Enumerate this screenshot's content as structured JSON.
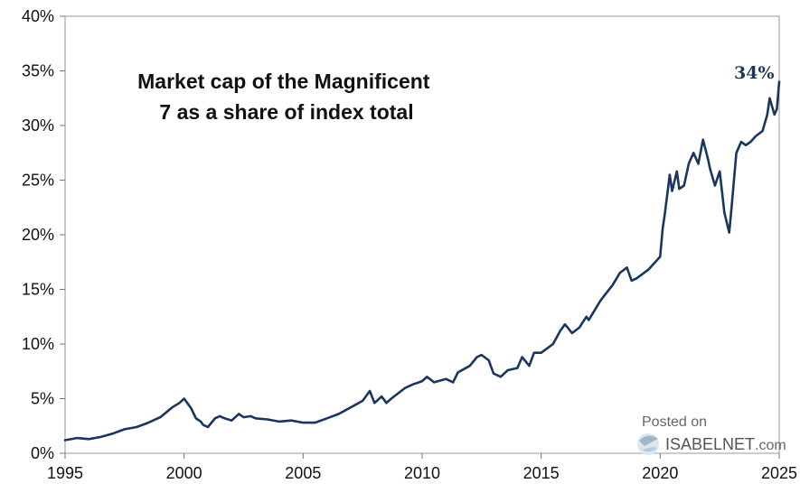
{
  "chart_data": {
    "type": "line",
    "title_lines": [
      "Market cap of the Magnificent",
      "7 as a share of index total"
    ],
    "xlabel": "",
    "ylabel": "",
    "xlim": [
      1995,
      2025
    ],
    "ylim": [
      0,
      40
    ],
    "x_ticks": [
      "1995",
      "2000",
      "2005",
      "2010",
      "2015",
      "2020",
      "2025"
    ],
    "y_ticks": [
      "0%",
      "5%",
      "10%",
      "15%",
      "20%",
      "25%",
      "30%",
      "35%",
      "40%"
    ],
    "grid": false,
    "line_color": "#1b365d",
    "end_label": "34%",
    "series": [
      {
        "x": [
          1995.0,
          1995.5,
          1996.0,
          1996.5,
          1997.0,
          1997.5,
          1998.0,
          1998.5,
          1999.0,
          1999.5,
          1999.8,
          2000.0,
          2000.3,
          2000.5,
          2000.7,
          2000.8,
          2001.0,
          2001.3,
          2001.5,
          2001.7,
          2002.0,
          2002.3,
          2002.5,
          2002.8,
          2003.0,
          2003.5,
          2004.0,
          2004.5,
          2005.0,
          2005.5,
          2006.0,
          2006.5,
          2007.0,
          2007.5,
          2007.8,
          2008.0,
          2008.3,
          2008.5,
          2008.7,
          2009.0,
          2009.3,
          2009.6,
          2010.0,
          2010.2,
          2010.5,
          2011.0,
          2011.3,
          2011.5,
          2012.0,
          2012.3,
          2012.5,
          2012.8,
          2013.0,
          2013.3,
          2013.6,
          2014.0,
          2014.2,
          2014.5,
          2014.7,
          2015.0,
          2015.5,
          2015.8,
          2016.0,
          2016.3,
          2016.6,
          2016.9,
          2017.0,
          2017.5,
          2018.0,
          2018.3,
          2018.6,
          2018.8,
          2019.0,
          2019.5,
          2020.0,
          2020.1,
          2020.2,
          2020.4,
          2020.5,
          2020.7,
          2020.8,
          2021.0,
          2021.2,
          2021.4,
          2021.6,
          2021.8,
          2022.0,
          2022.1,
          2022.3,
          2022.5,
          2022.7,
          2022.9,
          2023.0,
          2023.2,
          2023.4,
          2023.6,
          2023.8,
          2024.0,
          2024.3,
          2024.5,
          2024.6,
          2024.8,
          2024.9,
          2025.0
        ],
        "y": [
          1.2,
          1.4,
          1.3,
          1.5,
          1.8,
          2.2,
          2.4,
          2.8,
          3.3,
          4.2,
          4.6,
          5.0,
          4.1,
          3.2,
          2.9,
          2.6,
          2.4,
          3.2,
          3.4,
          3.2,
          3.0,
          3.6,
          3.3,
          3.4,
          3.2,
          3.1,
          2.9,
          3.0,
          2.8,
          2.8,
          3.2,
          3.6,
          4.2,
          4.8,
          5.7,
          4.6,
          5.2,
          4.6,
          5.0,
          5.5,
          6.0,
          6.3,
          6.6,
          7.0,
          6.5,
          6.8,
          6.5,
          7.4,
          8.0,
          8.8,
          9.0,
          8.5,
          7.3,
          7.0,
          7.6,
          7.8,
          8.8,
          8.0,
          9.2,
          9.2,
          10.0,
          11.2,
          11.8,
          11.0,
          11.5,
          12.5,
          12.2,
          14.0,
          15.4,
          16.5,
          17.0,
          15.8,
          16.0,
          16.8,
          18.0,
          20.5,
          22.0,
          25.5,
          24.0,
          25.8,
          24.2,
          24.5,
          26.5,
          27.5,
          26.5,
          28.7,
          27.0,
          26.0,
          24.5,
          25.8,
          22.0,
          20.2,
          22.5,
          27.5,
          28.5,
          28.2,
          28.5,
          29.0,
          29.5,
          31.0,
          32.5,
          31.0,
          31.5,
          34.0
        ]
      }
    ]
  },
  "watermark": {
    "posted_on": "Posted on",
    "brand": "ISABELNET",
    "suffix": ".com"
  }
}
